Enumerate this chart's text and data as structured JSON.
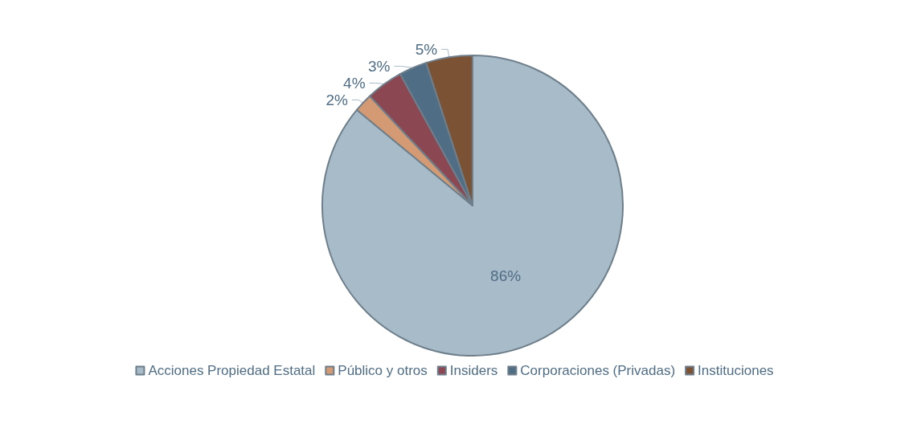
{
  "chart_data": {
    "type": "pie",
    "categories": [
      "Acciones Propiedad Estatal",
      "Público y otros",
      "Insiders",
      "Corporaciones (Privadas)",
      "Instituciones"
    ],
    "values": [
      86,
      2,
      4,
      3,
      5
    ],
    "colors": [
      "#a8bbc8",
      "#d39a73",
      "#8c4852",
      "#4f6d85",
      "#7c5235"
    ],
    "value_labels": [
      "86%",
      "2%",
      "4%",
      "3%",
      "5%"
    ],
    "legend": "bottom"
  }
}
